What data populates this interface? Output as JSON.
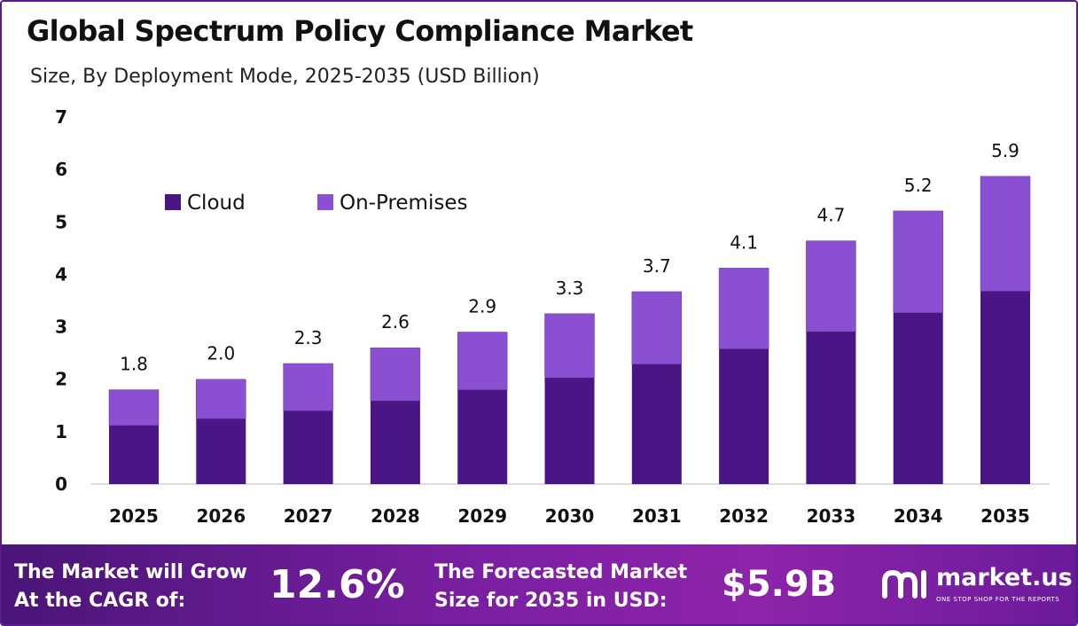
{
  "title": "Global Spectrum Policy Compliance Market",
  "subtitle": "Size, By Deployment Mode, 2025-2035 (USD Billion)",
  "chart_data": {
    "type": "bar",
    "stacked": true,
    "categories": [
      "2025",
      "2026",
      "2027",
      "2028",
      "2029",
      "2030",
      "2031",
      "2032",
      "2033",
      "2034",
      "2035"
    ],
    "series": [
      {
        "name": "Cloud",
        "color": "#4a1585",
        "values": [
          1.12,
          1.25,
          1.4,
          1.59,
          1.8,
          2.03,
          2.29,
          2.58,
          2.91,
          3.27,
          3.68
        ]
      },
      {
        "name": "On-Premises",
        "color": "#8b4fd1",
        "values": [
          0.68,
          0.75,
          0.9,
          1.01,
          1.1,
          1.22,
          1.38,
          1.54,
          1.73,
          1.94,
          2.19
        ]
      }
    ],
    "totals": [
      "1.8",
      "2.0",
      "2.3",
      "2.6",
      "2.9",
      "3.3",
      "3.7",
      "4.1",
      "4.7",
      "5.2",
      "5.9"
    ],
    "ylim": [
      0,
      7
    ],
    "yticks": [
      0,
      1,
      2,
      3,
      4,
      5,
      6,
      7
    ],
    "legend_position": "top-left",
    "grid": false
  },
  "footer": {
    "cagr_label_line1": "The Market will Grow",
    "cagr_label_line2": "At the CAGR of:",
    "cagr_value": "12.6%",
    "forecast_label_line1": "The Forecasted Market",
    "forecast_label_line2": "Size for 2035 in USD:",
    "forecast_value": "$5.9B"
  },
  "brand": {
    "name": "market.us",
    "tagline": "ONE STOP SHOP FOR THE REPORTS",
    "icon": "market-us-logo-icon"
  }
}
